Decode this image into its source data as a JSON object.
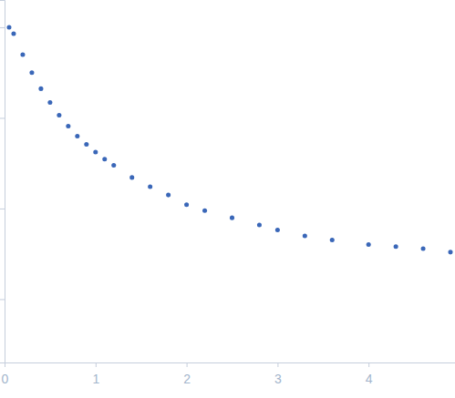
{
  "chart_data": {
    "type": "scatter",
    "log": "y",
    "tick_labels": "x",
    "marker": "circle",
    "color": "#3a67b8",
    "x": [
      0.05,
      0.1,
      0.2,
      0.3,
      0.4,
      0.5,
      0.6,
      0.7,
      0.8,
      0.9,
      1.0,
      1.1,
      1.2,
      1.4,
      1.6,
      1.8,
      2.0,
      2.2,
      2.5,
      2.8,
      3.0,
      3.3,
      3.6,
      4.0,
      4.3,
      4.6,
      4.9
    ],
    "values": [
      1.0,
      0.85,
      0.5,
      0.316,
      0.21,
      0.148,
      0.107,
      0.081,
      0.063,
      0.051,
      0.042,
      0.035,
      0.03,
      0.022,
      0.0174,
      0.0141,
      0.011,
      0.0095,
      0.0079,
      0.0066,
      0.0058,
      0.005,
      0.0045,
      0.004,
      0.0038,
      0.0036,
      0.0033
    ],
    "xlim": [
      0,
      4.95
    ],
    "xticks": [
      0,
      1,
      2,
      3,
      4
    ],
    "ylim": [
      0.0002,
      2
    ],
    "yticks": [
      0.001,
      0.01,
      0.1,
      1
    ]
  }
}
